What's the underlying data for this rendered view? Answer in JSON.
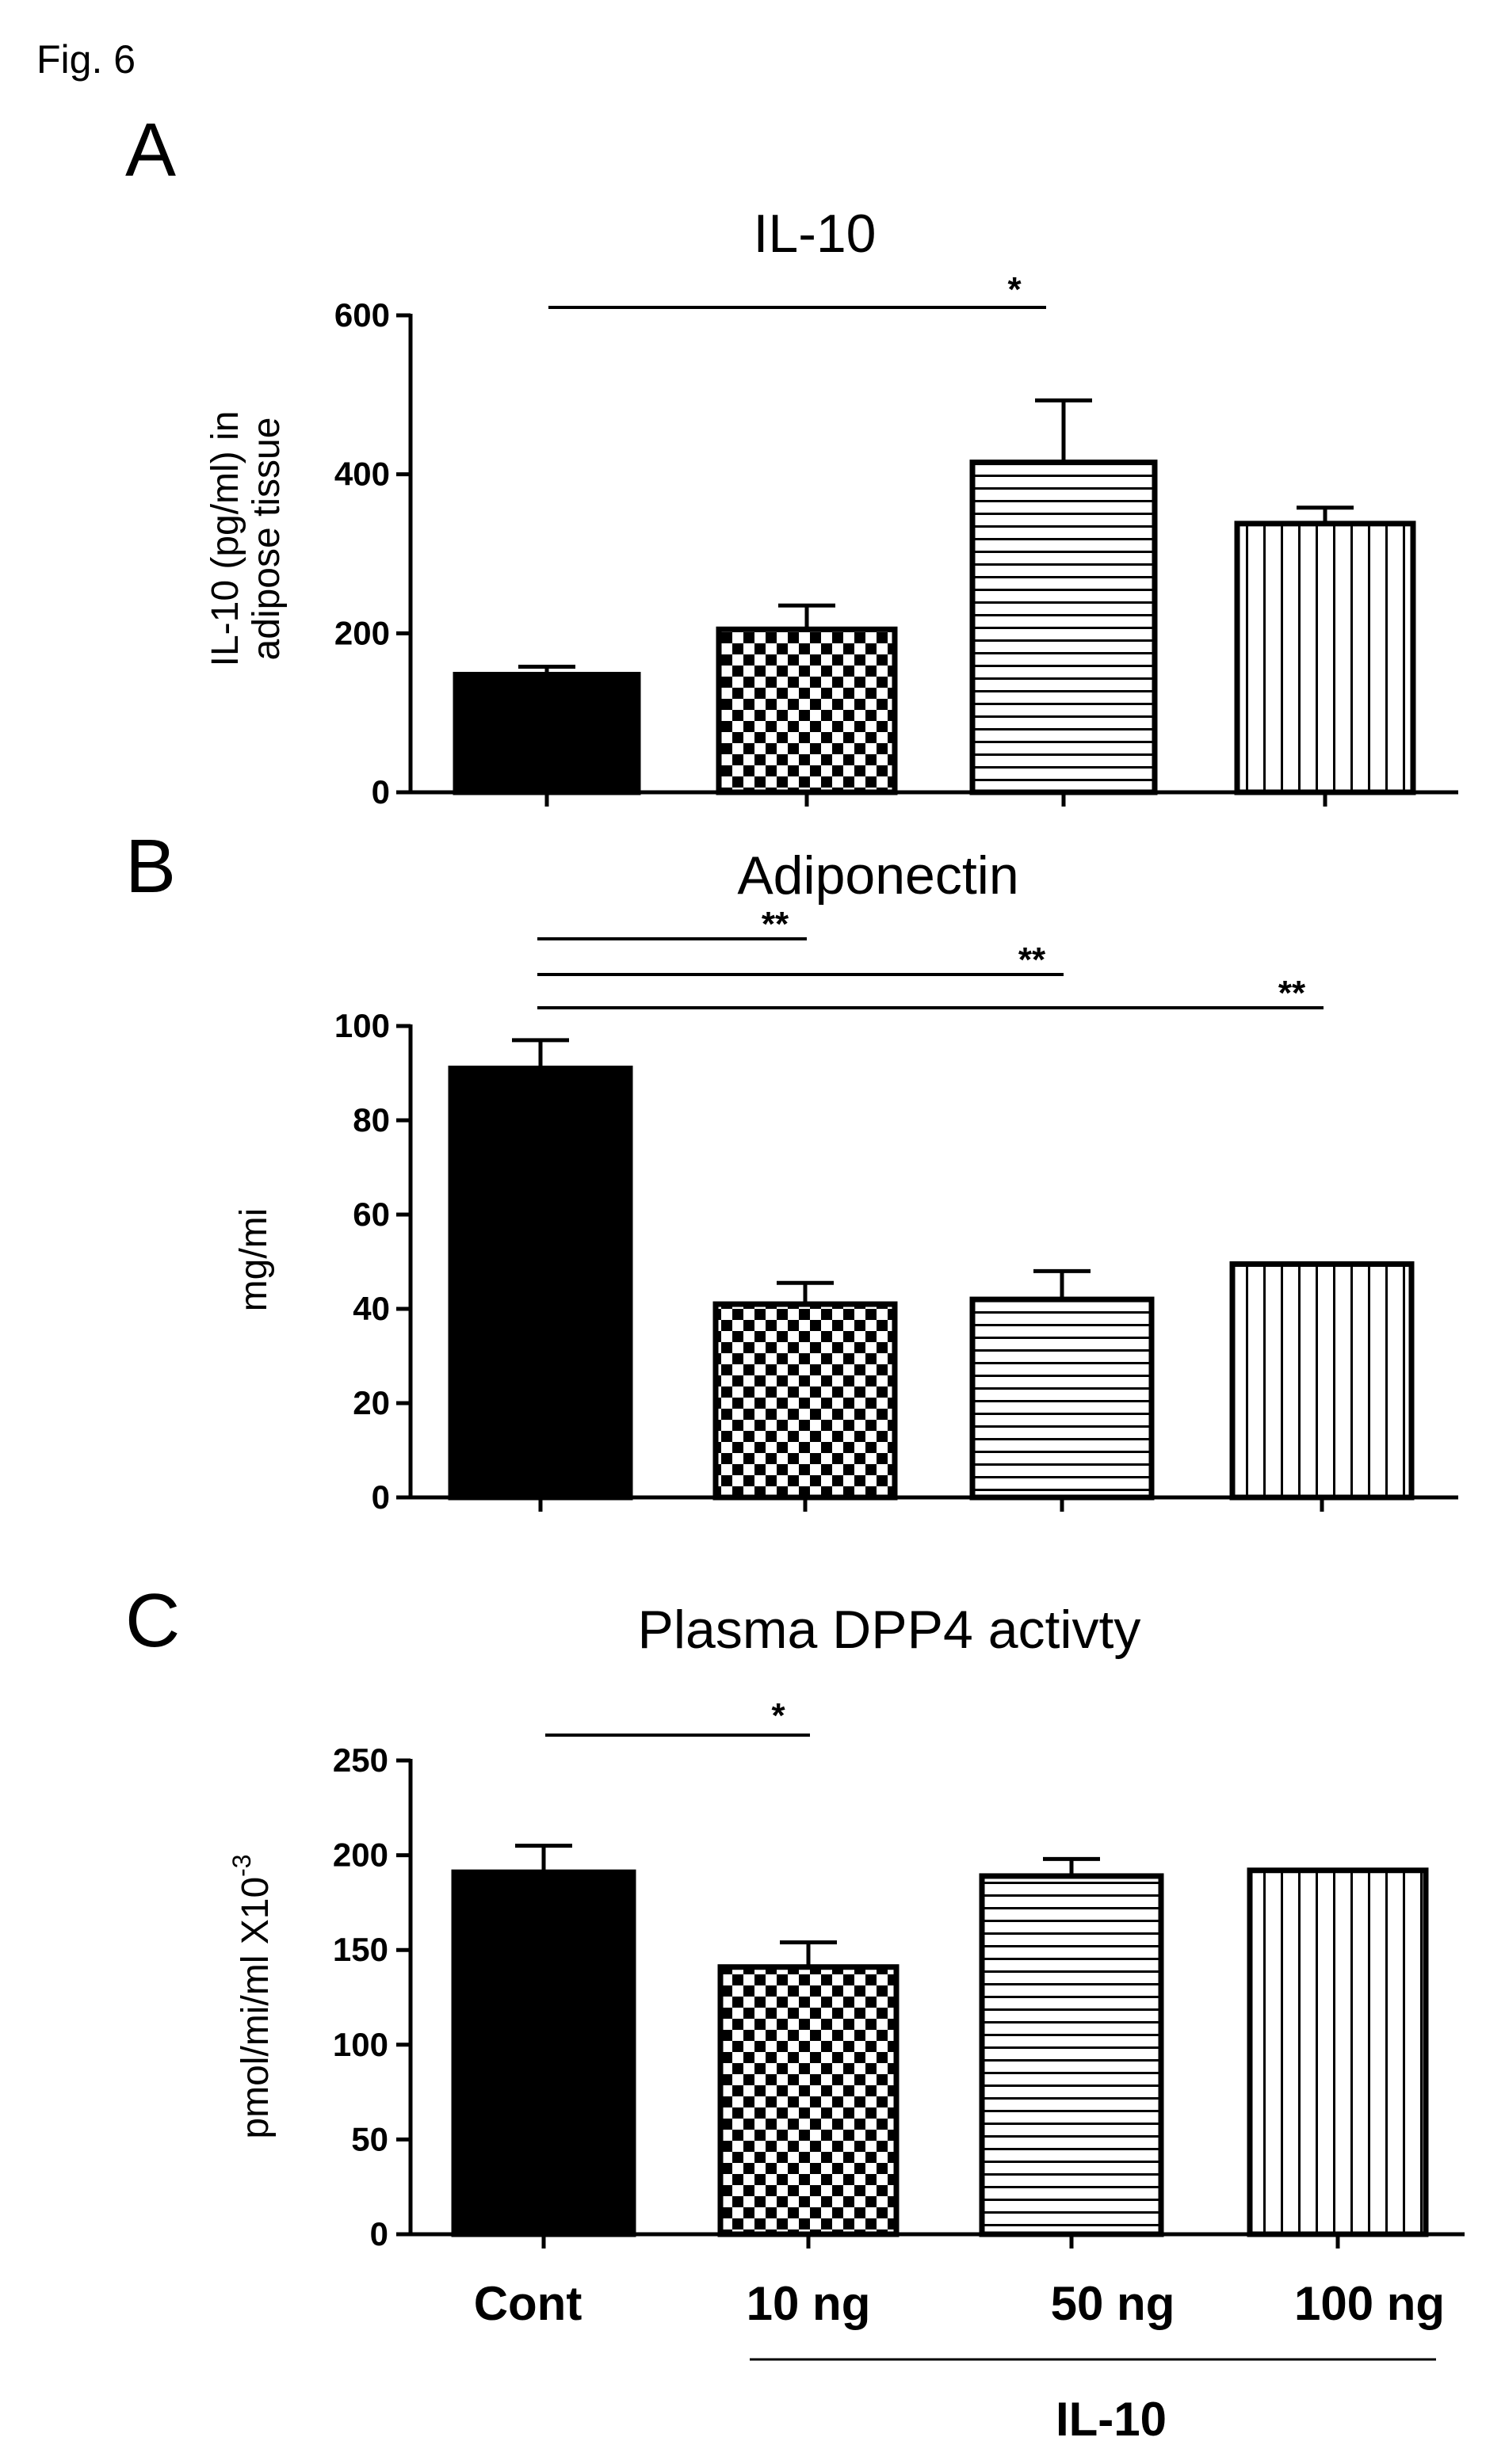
{
  "figure_label": "Fig. 6",
  "x_categories": [
    "Cont",
    "10 ng",
    "50 ng",
    "100 ng"
  ],
  "group_label": "IL-10",
  "colors": {
    "ink": "#000000",
    "paper": "#ffffff"
  },
  "patterns": [
    "solid",
    "checker",
    "horizontal-lines",
    "vertical-lines"
  ],
  "chart_data": [
    {
      "panel": "A",
      "type": "bar",
      "title": "IL-10",
      "ylabel_lines": [
        "IL-10 (pg/ml) in",
        "adipose tissue"
      ],
      "xlabel": "",
      "categories": [
        "Cont",
        "10 ng",
        "50 ng",
        "100 ng"
      ],
      "values": [
        148,
        205,
        415,
        338
      ],
      "errors": [
        10,
        30,
        78,
        20
      ],
      "ylim": [
        0,
        600
      ],
      "yticks": [
        0,
        200,
        400,
        600
      ],
      "grid": false,
      "significance": [
        {
          "from": 0,
          "to": 2,
          "label": "*"
        }
      ]
    },
    {
      "panel": "B",
      "type": "bar",
      "title": "Adiponectin",
      "ylabel_lines": [
        "mg/mi"
      ],
      "xlabel": "",
      "categories": [
        "Cont",
        "10 ng",
        "50 ng",
        "100 ng"
      ],
      "values": [
        91,
        41,
        42,
        49.5
      ],
      "errors": [
        6,
        4.5,
        6,
        0
      ],
      "ylim": [
        0,
        100
      ],
      "yticks": [
        0,
        20,
        40,
        60,
        80,
        100
      ],
      "grid": false,
      "significance": [
        {
          "from": 0,
          "to": 1,
          "label": "**"
        },
        {
          "from": 0,
          "to": 2,
          "label": "**"
        },
        {
          "from": 0,
          "to": 3,
          "label": "**"
        }
      ]
    },
    {
      "panel": "C",
      "type": "bar",
      "title": "Plasma DPP4 activty",
      "ylabel_lines": [
        "pmol/mi/ml X10"
      ],
      "ylabel_superscript": "-3",
      "xlabel": "IL-10",
      "categories": [
        "Cont",
        "10 ng",
        "50 ng",
        "100 ng"
      ],
      "values": [
        191,
        141,
        189,
        192
      ],
      "errors": [
        14,
        13,
        9,
        0
      ],
      "ylim": [
        0,
        250
      ],
      "yticks": [
        0,
        50,
        100,
        150,
        200,
        250
      ],
      "grid": false,
      "significance": [
        {
          "from": 0,
          "to": 1,
          "label": "*"
        }
      ]
    }
  ]
}
